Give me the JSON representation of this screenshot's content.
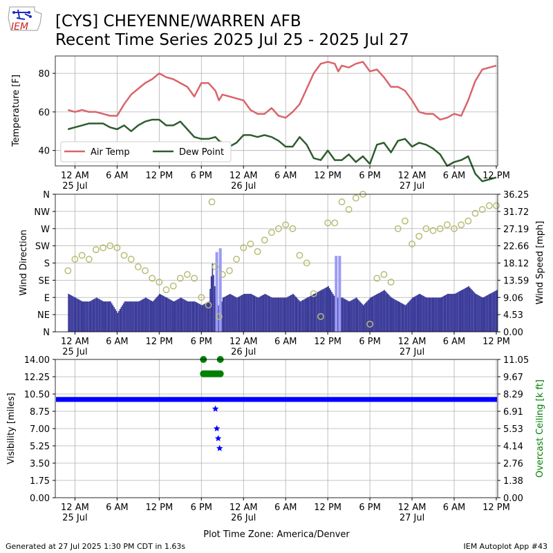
{
  "header": {
    "title_line1": "[CYS] CHEYENNE/WARREN AFB",
    "title_line2": "Recent Time Series 2025 Jul 25 - 2025 Jul 27",
    "logo_text": "IEM"
  },
  "footer": {
    "generated": "Generated at 27 Jul 2025 1:30 PM CDT in 1.63s",
    "app": "IEM Autoplot App #43"
  },
  "colors": {
    "air_temp": "#d9646a",
    "dew_point": "#2d5c2f",
    "wind_direction": "#b8bc74",
    "wind_speed": "#3a3a99",
    "wind_gust": "#9a9af5",
    "visibility": "#0000ff",
    "ceiling": "#008000",
    "grid": "#b0b0b0"
  },
  "chart_data": [
    {
      "type": "line",
      "ylabel": "Temperature [F]",
      "xlabel": "",
      "time_ticks": [
        "12 AM",
        "6 AM",
        "12 PM",
        "6 PM",
        "12 AM",
        "6 AM",
        "12 PM",
        "6 PM",
        "12 AM",
        "6 AM",
        "12 PM"
      ],
      "time_tick_hours": [
        0,
        6,
        12,
        18,
        24,
        30,
        36,
        42,
        48,
        54,
        60
      ],
      "date_labels": [
        {
          "hour": 0,
          "label": "25 Jul"
        },
        {
          "hour": 24,
          "label": "26 Jul"
        },
        {
          "hour": 48,
          "label": "27 Jul"
        }
      ],
      "xlim_hours": [
        -2.8,
        60.2
      ],
      "ylim": [
        32,
        89
      ],
      "yticks": [
        40,
        60,
        80
      ],
      "legend": {
        "placement": "lower-left",
        "entries": [
          "Air Temp",
          "Dew Point"
        ]
      },
      "grid": true,
      "series": [
        {
          "name": "Air Temp",
          "x_hours": [
            -1,
            0,
            1,
            2,
            3,
            4,
            5,
            6,
            7,
            8,
            9,
            10,
            11,
            12,
            13,
            14,
            15,
            16,
            17,
            18,
            19,
            20,
            20.5,
            21,
            22,
            23,
            24,
            25,
            26,
            27,
            28,
            29,
            30,
            31,
            32,
            33,
            34,
            35,
            36,
            37,
            37.5,
            38,
            39,
            40,
            41,
            42,
            43,
            44,
            45,
            46,
            47,
            48,
            49,
            50,
            51,
            52,
            53,
            54,
            55,
            56,
            57,
            58,
            59,
            60
          ],
          "values": [
            61,
            60,
            61,
            60,
            60,
            59,
            58,
            58,
            64,
            69,
            72,
            75,
            77,
            80,
            78,
            77,
            75,
            73,
            68,
            75,
            75,
            71,
            66,
            69,
            68,
            67,
            66,
            61,
            59,
            59,
            62,
            58,
            57,
            60,
            64,
            72,
            80,
            85,
            86,
            85,
            81,
            84,
            83,
            85,
            86,
            81,
            82,
            78,
            73,
            73,
            71,
            66,
            60,
            59,
            59,
            56,
            57,
            59,
            58,
            66,
            76,
            82,
            83,
            84
          ]
        },
        {
          "name": "Dew Point",
          "x_hours": [
            -1,
            0,
            1,
            2,
            3,
            4,
            5,
            6,
            7,
            8,
            9,
            10,
            11,
            12,
            13,
            14,
            15,
            16,
            17,
            18,
            19,
            20,
            20.5,
            21,
            22,
            23,
            24,
            25,
            26,
            27,
            28,
            29,
            30,
            31,
            32,
            33,
            34,
            35,
            36,
            37,
            38,
            39,
            40,
            41,
            42,
            43,
            44,
            45,
            46,
            47,
            48,
            49,
            50,
            51,
            52,
            53,
            54,
            55,
            56,
            57,
            58,
            59,
            60
          ],
          "values": [
            51,
            52,
            53,
            54,
            54,
            54,
            52,
            51,
            53,
            50,
            53,
            55,
            56,
            56,
            53,
            53,
            55,
            51,
            47,
            46,
            46,
            47,
            45,
            44,
            42,
            44,
            48,
            48,
            47,
            48,
            47,
            45,
            42,
            42,
            47,
            43,
            36,
            35,
            40,
            35,
            35,
            38,
            34,
            37,
            33,
            43,
            44,
            39,
            45,
            46,
            42,
            44,
            43,
            41,
            38,
            32,
            34,
            35,
            37,
            28,
            24,
            25,
            26
          ]
        }
      ]
    },
    {
      "type": "scatter",
      "ylabel": "Wind Direction",
      "y2label": "Wind Speed [mph]",
      "xlabel": "",
      "ylim": [
        0,
        360
      ],
      "yticks": [
        0,
        45,
        90,
        135,
        180,
        225,
        270,
        315,
        360
      ],
      "ytick_labels": [
        "N",
        "NE",
        "E",
        "SE",
        "S",
        "SW",
        "W",
        "NW",
        "N"
      ],
      "y2lim": [
        0,
        36.25
      ],
      "y2ticks": [
        "0.00",
        "4.53",
        "9.06",
        "13.59",
        "18.12",
        "22.66",
        "27.19",
        "31.72",
        "36.25"
      ],
      "grid": true,
      "series": [
        {
          "name": "",
          "x_hours": [
            -1,
            0,
            1,
            2,
            3,
            4,
            5,
            6,
            7,
            8,
            9,
            10,
            11,
            12,
            13,
            14,
            15,
            16,
            17,
            18,
            19,
            19.5,
            20,
            20.5,
            21,
            22,
            23,
            24,
            25,
            26,
            27,
            28,
            29,
            30,
            31,
            32,
            33,
            34,
            35,
            36,
            37,
            38,
            39,
            40,
            41,
            42,
            43,
            44,
            45,
            46,
            47,
            48,
            49,
            50,
            51,
            52,
            53,
            54,
            55,
            56,
            57,
            58,
            59,
            60
          ],
          "values": [
            160,
            190,
            200,
            190,
            215,
            220,
            225,
            220,
            200,
            190,
            170,
            160,
            140,
            130,
            110,
            120,
            140,
            150,
            140,
            90,
            70,
            340,
            170,
            40,
            150,
            160,
            190,
            220,
            230,
            210,
            240,
            260,
            270,
            280,
            270,
            200,
            180,
            100,
            40,
            285,
            285,
            340,
            320,
            350,
            360,
            20,
            140,
            150,
            130,
            270,
            290,
            230,
            250,
            270,
            265,
            270,
            280,
            270,
            280,
            290,
            310,
            320,
            330,
            330
          ]
        },
        {
          "name": "",
          "x_hours": [
            -1,
            0,
            1,
            2,
            3,
            4,
            5,
            6,
            7,
            8,
            9,
            10,
            11,
            12,
            13,
            14,
            15,
            16,
            17,
            18,
            19,
            19.5,
            20,
            20.5,
            21,
            22,
            23,
            24,
            25,
            26,
            27,
            28,
            29,
            30,
            31,
            32,
            33,
            34,
            35,
            36,
            37,
            38,
            39,
            40,
            41,
            42,
            43,
            44,
            45,
            46,
            47,
            48,
            49,
            50,
            51,
            52,
            53,
            54,
            55,
            56,
            57,
            58,
            59,
            60
          ],
          "values": [
            10,
            9,
            8,
            8,
            9,
            8,
            8,
            5,
            8,
            8,
            8,
            9,
            8,
            10,
            9,
            8,
            9,
            8,
            8,
            7,
            8,
            18,
            9,
            6,
            9,
            10,
            9,
            10,
            10,
            9,
            10,
            9,
            9,
            9,
            10,
            8,
            9,
            10,
            11,
            12,
            9,
            9,
            8,
            9,
            7,
            9,
            10,
            11,
            9,
            8,
            7,
            9,
            10,
            9,
            9,
            9,
            10,
            10,
            11,
            12,
            10,
            9,
            10,
            11
          ]
        },
        {
          "name": "",
          "x_hours": [
            20,
            20.5,
            37,
            37.5
          ],
          "values": [
            21,
            22,
            20,
            20
          ]
        }
      ]
    },
    {
      "type": "scatter",
      "ylabel": "Visibility [miles]",
      "y2label": "Overcast Ceiling [k ft]",
      "xlabel": "Plot Time Zone: America/Denver",
      "ylim": [
        0,
        14
      ],
      "yticks": [
        "0.00",
        "1.75",
        "3.50",
        "5.25",
        "7.00",
        "8.75",
        "10.50",
        "12.25",
        "14.00"
      ],
      "y2lim": [
        0,
        11.05
      ],
      "y2ticks": [
        "0.00",
        "1.38",
        "2.76",
        "4.14",
        "5.53",
        "6.91",
        "8.29",
        "9.67",
        "11.05"
      ],
      "grid": true,
      "series": [
        {
          "name": "",
          "x_hours": [
            20,
            20.2,
            20.4,
            20.6
          ],
          "values": [
            9,
            7,
            6,
            5
          ]
        },
        {
          "name": "",
          "x_hours": [
            18.3,
            18.6,
            18.9,
            19.2,
            19.5,
            19.8,
            20.1,
            20.4,
            20.7,
            18.3,
            20.7
          ],
          "values": [
            9.9,
            9.9,
            9.9,
            9.9,
            9.9,
            9.9,
            9.9,
            9.9,
            9.9,
            11.05,
            11.05
          ]
        }
      ]
    }
  ]
}
